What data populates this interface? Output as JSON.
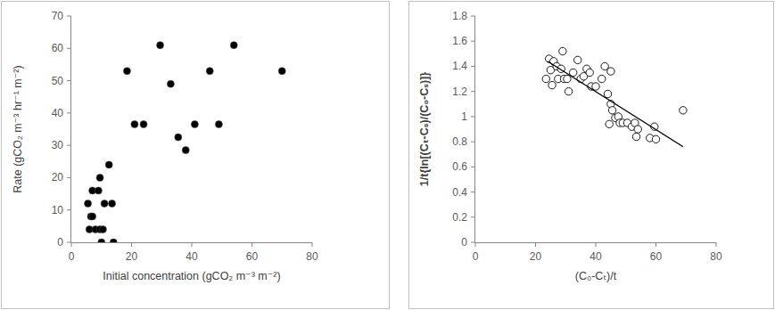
{
  "chart_data": [
    {
      "type": "scatter",
      "x_label": "Initial concentration (gCO₂ m⁻³ m⁻²)",
      "y_label": "Rate (gCO₂ m⁻³ hr⁻¹ m⁻²)",
      "xlim": [
        0,
        80
      ],
      "ylim": [
        0,
        70
      ],
      "xticks": [
        0,
        20,
        40,
        60,
        80
      ],
      "yticks": [
        0,
        10,
        20,
        30,
        40,
        50,
        60,
        70
      ],
      "grid": false,
      "series": [
        {
          "color": "#000000",
          "marker": "filled-circle",
          "x": [
            5.5,
            6,
            6.5,
            7,
            7,
            8,
            9,
            9.5,
            9.5,
            10,
            10.5,
            11,
            12.5,
            13.5,
            14,
            18.5,
            21,
            24,
            29.5,
            33,
            35.5,
            38,
            41,
            46,
            49,
            54,
            70
          ],
          "values": [
            12,
            4,
            8,
            8,
            16,
            4,
            16,
            20,
            4,
            0,
            4,
            12,
            24,
            12,
            0,
            53,
            36.5,
            36.5,
            61,
            49,
            32.5,
            28.5,
            36.5,
            53,
            36.5,
            61,
            53
          ]
        }
      ]
    },
    {
      "type": "scatter",
      "x_label": "(C₀-Cₜ)/t",
      "y_label": "1/t{ln[(Cₜ-Cₛ)/(C₀-Cₛ)]}",
      "xlim": [
        0,
        80
      ],
      "ylim": [
        0,
        1.8
      ],
      "xticks": [
        0,
        20,
        40,
        60,
        80
      ],
      "yticks": [
        0,
        0.2,
        0.4,
        0.6,
        0.8,
        1,
        1.2,
        1.4,
        1.6,
        1.8
      ],
      "grid": false,
      "series": [
        {
          "color": "#000000",
          "marker": "open-circle",
          "x": [
            23.5,
            24.5,
            25,
            25.5,
            26,
            27,
            27.5,
            28.5,
            29,
            29.5,
            30.5,
            31,
            32.5,
            34,
            35,
            36,
            37,
            38,
            38.5,
            40,
            42,
            43,
            44,
            44.5,
            45,
            45,
            45.5,
            46.5,
            47.5,
            48,
            49,
            50.5,
            52,
            53,
            53.5,
            54,
            58,
            59.5,
            60,
            69
          ],
          "values": [
            1.3,
            1.46,
            1.37,
            1.25,
            1.44,
            1.4,
            1.3,
            1.38,
            1.52,
            1.3,
            1.3,
            1.2,
            1.35,
            1.45,
            1.3,
            1.32,
            1.38,
            1.35,
            1.24,
            1.24,
            1.3,
            1.4,
            1.18,
            0.94,
            1.36,
            1.1,
            1.05,
            0.99,
            1.0,
            0.95,
            0.95,
            0.95,
            0.92,
            0.95,
            0.84,
            0.9,
            0.83,
            0.92,
            0.82,
            1.05
          ]
        },
        {
          "type": "line",
          "color": "#000000",
          "line_style": "solid",
          "x": [
            24,
            69
          ],
          "values": [
            1.44,
            0.76
          ]
        }
      ]
    }
  ]
}
